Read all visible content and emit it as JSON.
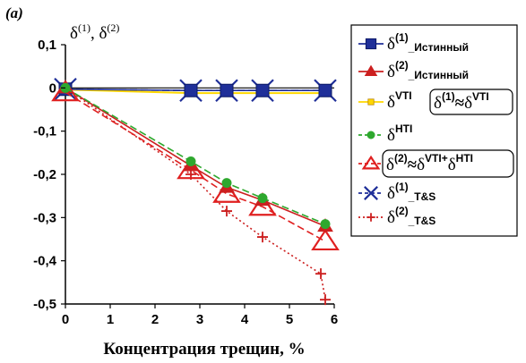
{
  "panel_label": "(a)",
  "chart_data": {
    "type": "line",
    "xlabel": "Концентрация трещин, %",
    "ylabel": {
      "base": "δ",
      "sup1": "(1)",
      "sep": ", ",
      "sup2": "(2)"
    },
    "xlim": [
      0,
      6
    ],
    "ylim": [
      -0.5,
      0.1
    ],
    "xticks": [
      "0",
      "1",
      "2",
      "3",
      "4",
      "5",
      "6"
    ],
    "yticks": [
      "0,1",
      "0",
      "-0,1",
      "-0,2",
      "-0,3",
      "-0,4",
      "-0,5"
    ],
    "grid": false,
    "legend_position": "right",
    "series": [
      {
        "name": "δ(1)_Истинный",
        "label": {
          "base": "δ",
          "sup": "(1)",
          "suffix": "_Истинный"
        },
        "color": "#1f2f99",
        "style": "solid",
        "marker": "square",
        "x": [
          0,
          2.8,
          3.6,
          4.4,
          5.8
        ],
        "y": [
          -0.003,
          -0.006,
          -0.006,
          -0.006,
          -0.006
        ]
      },
      {
        "name": "δ(2)_Истинный",
        "label": {
          "base": "δ",
          "sup": "(2)",
          "suffix": "_Истинный"
        },
        "color": "#cc1f1f",
        "style": "solid",
        "marker": "triangle",
        "x": [
          0,
          2.8,
          3.6,
          4.4,
          5.8
        ],
        "y": [
          0.0,
          -0.18,
          -0.23,
          -0.26,
          -0.32
        ]
      },
      {
        "name": "δVTI",
        "label": {
          "base": "δ",
          "sup": "VTI",
          "suffix": ""
        },
        "color": "#ffd700",
        "style": "solid",
        "marker": "square-small",
        "x": [
          0,
          2.8,
          3.6,
          4.4,
          5.8
        ],
        "y": [
          -0.004,
          -0.012,
          -0.012,
          -0.012,
          -0.012
        ]
      },
      {
        "name": "δHTI",
        "label": {
          "base": "δ",
          "sup": "HTI",
          "suffix": ""
        },
        "color": "#2ea82e",
        "style": "dash",
        "marker": "circle",
        "x": [
          0,
          2.8,
          3.6,
          4.4,
          5.8
        ],
        "y": [
          0.0,
          -0.17,
          -0.22,
          -0.255,
          -0.315
        ]
      },
      {
        "name": "δ(2)≈δVTI+δHTI",
        "label": {
          "base": "δ",
          "sup": "(2)",
          "suffix": ""
        },
        "color": "#e02020",
        "style": "dash",
        "marker": "triangle-open",
        "x": [
          0,
          2.8,
          3.6,
          4.4,
          5.8
        ],
        "y": [
          -0.01,
          -0.19,
          -0.245,
          -0.275,
          -0.355
        ]
      },
      {
        "name": "δ(1)_T&S",
        "label": {
          "base": "δ",
          "sup": "(1)",
          "suffix": "_T&S"
        },
        "color": "#1f2f99",
        "style": "dash",
        "marker": "x",
        "x": [
          0,
          2.8,
          3.6,
          4.4,
          5.8
        ],
        "y": [
          -0.003,
          -0.006,
          -0.006,
          -0.006,
          -0.006
        ]
      },
      {
        "name": "δ(2)_T&S",
        "label": {
          "base": "δ",
          "sup": "(2)",
          "suffix": "_T&S"
        },
        "color": "#cc1f1f",
        "style": "dot",
        "marker": "plus",
        "x": [
          0,
          2.8,
          3.6,
          4.4,
          5.7,
          5.8
        ],
        "y": [
          0.0,
          -0.2,
          -0.285,
          -0.345,
          -0.43,
          -0.49
        ]
      }
    ],
    "annotations": [
      {
        "text": "δ(1) ≈ δVTI",
        "parts": {
          "b1": "δ",
          "s1": "(1)",
          "mid": "≈",
          "b2": "δ",
          "s2": "VTI"
        }
      },
      {
        "text": "δ(2) ≈ δVTI + δHTI",
        "parts": {
          "b1": "δ",
          "s1": "(2)",
          "mid": "≈",
          "b2": "δ",
          "s2": "VTI",
          "plus": "+",
          "b3": "δ",
          "s3": "HTI"
        }
      }
    ]
  }
}
